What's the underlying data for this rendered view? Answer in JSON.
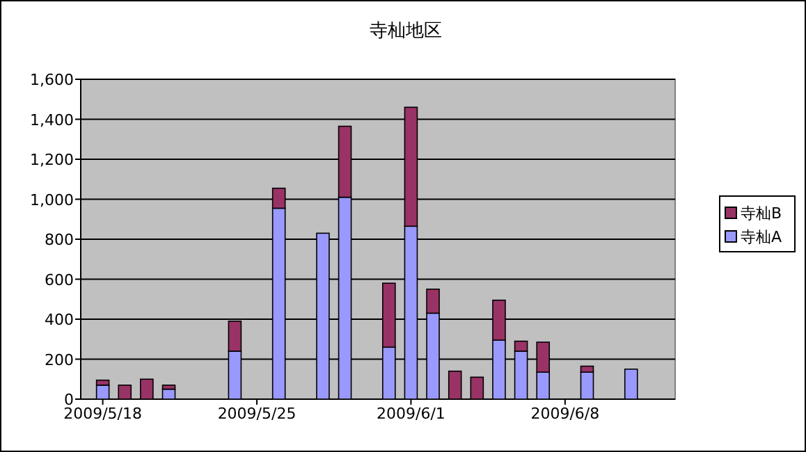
{
  "chart_data": {
    "type": "bar",
    "title": "寺杣地区",
    "stacked": true,
    "x": [
      "2009-05-18",
      "2009-05-19",
      "2009-05-20",
      "2009-05-21",
      "2009-05-24",
      "2009-05-26",
      "2009-05-28",
      "2009-05-29",
      "2009-05-31",
      "2009-06-01",
      "2009-06-02",
      "2009-06-03",
      "2009-06-04",
      "2009-06-05",
      "2009-06-06",
      "2009-06-07",
      "2009-06-09",
      "2009-06-11"
    ],
    "series": [
      {
        "name": "寺杣A",
        "color": "#9999ff",
        "values": [
          70,
          null,
          null,
          50,
          240,
          955,
          830,
          1010,
          260,
          865,
          430,
          null,
          null,
          295,
          240,
          135,
          135,
          150
        ]
      },
      {
        "name": "寺杣B",
        "color": "#993366",
        "values": [
          25,
          70,
          100,
          20,
          150,
          100,
          null,
          355,
          320,
          595,
          120,
          140,
          110,
          200,
          50,
          150,
          30,
          null
        ]
      }
    ],
    "xlim": [
      "2009-05-17",
      "2009-06-13"
    ],
    "xticks": [
      {
        "value": "2009-05-18",
        "label": "2009/5/18"
      },
      {
        "value": "2009-05-25",
        "label": "2009/5/25"
      },
      {
        "value": "2009-06-01",
        "label": "2009/6/1"
      },
      {
        "value": "2009-06-08",
        "label": "2009/6/8"
      }
    ],
    "ylim": [
      0,
      1600
    ],
    "yticks": [
      {
        "value": 0,
        "label": "0"
      },
      {
        "value": 200,
        "label": "200"
      },
      {
        "value": 400,
        "label": "400"
      },
      {
        "value": 600,
        "label": "600"
      },
      {
        "value": 800,
        "label": "800"
      },
      {
        "value": 1000,
        "label": "1,000"
      },
      {
        "value": 1200,
        "label": "1,200"
      },
      {
        "value": 1400,
        "label": "1,400"
      },
      {
        "value": 1600,
        "label": "1,600"
      }
    ],
    "grid": "y",
    "legend": "right"
  }
}
